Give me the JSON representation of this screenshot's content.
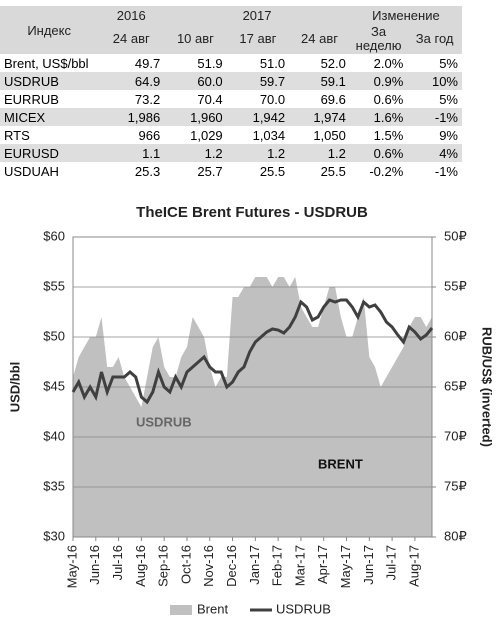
{
  "table": {
    "header_top": [
      "Индекс",
      "2016",
      "2017",
      "Изменение"
    ],
    "header_sub": [
      "24 авг",
      "10 авг",
      "17 авг",
      "24 авг",
      "За неделю",
      "За год"
    ],
    "rows": [
      [
        "Brent, US$/bbl",
        "49.7",
        "51.9",
        "51.0",
        "52.0",
        "2.0%",
        "5%"
      ],
      [
        "USDRUB",
        "64.9",
        "60.0",
        "59.7",
        "59.1",
        "0.9%",
        "10%"
      ],
      [
        "EURRUB",
        "73.2",
        "70.4",
        "70.0",
        "69.6",
        "0.6%",
        "5%"
      ],
      [
        "MICEX",
        "1,986",
        "1,960",
        "1,942",
        "1,974",
        "1.6%",
        "-1%"
      ],
      [
        "RTS",
        "966",
        "1,029",
        "1,034",
        "1,050",
        "1.5%",
        "9%"
      ],
      [
        "EURUSD",
        "1.1",
        "1.2",
        "1.2",
        "1.2",
        "0.6%",
        "4%"
      ],
      [
        "USDUAH",
        "25.3",
        "25.7",
        "25.5",
        "25.5",
        "-0.2%",
        "-1%"
      ]
    ]
  },
  "chart_data": {
    "type": "area-line",
    "title": "TheICE Brent Futures - USDRUB",
    "y_label": "USD/bbl",
    "y2_label": "RUB/US$ (inverted)",
    "annotations": [
      "USDRUB",
      "BRENT"
    ],
    "legend": "bottom",
    "grid": true,
    "categories": [
      "May-16",
      null,
      null,
      null,
      "Jun-16",
      null,
      null,
      null,
      "Jul-16",
      null,
      null,
      null,
      "Aug-16",
      null,
      null,
      null,
      "Sep-16",
      null,
      null,
      null,
      "Oct-16",
      null,
      null,
      null,
      "Nov-16",
      null,
      null,
      null,
      "Dec-16",
      null,
      null,
      null,
      "Jan-17",
      null,
      null,
      null,
      "Feb-17",
      null,
      null,
      null,
      "Mar-17",
      null,
      null,
      null,
      "Apr-17",
      null,
      null,
      null,
      "May-17",
      null,
      null,
      null,
      "Jun-17",
      null,
      null,
      null,
      "Jul-17",
      null,
      null,
      null,
      "Aug-17",
      null,
      null,
      null
    ],
    "ylim": [
      30,
      60
    ],
    "yticks": [
      {
        "value": 30,
        "label": "$30"
      },
      {
        "value": 35,
        "label": "$35"
      },
      {
        "value": 40,
        "label": "$40"
      },
      {
        "value": 45,
        "label": "$45"
      },
      {
        "value": 50,
        "label": "$50"
      },
      {
        "value": 55,
        "label": "$55"
      },
      {
        "value": 60,
        "label": "$60"
      }
    ],
    "y2lim": [
      80,
      50
    ],
    "y2ticks": [
      {
        "value": 50,
        "label": "50₽"
      },
      {
        "value": 55,
        "label": "55₽"
      },
      {
        "value": 60,
        "label": "60₽"
      },
      {
        "value": 65,
        "label": "65₽"
      },
      {
        "value": 70,
        "label": "70₽"
      },
      {
        "value": 75,
        "label": "75₽"
      },
      {
        "value": 80,
        "label": "80₽"
      }
    ],
    "series": [
      {
        "name": "Brent",
        "color": "#c0c0c0",
        "values": [
          46,
          48,
          49,
          50,
          50,
          52,
          47,
          47,
          48,
          46,
          45,
          44,
          43,
          46,
          49,
          50,
          47,
          46,
          46,
          48,
          49,
          52,
          51,
          50,
          47,
          45,
          46,
          46,
          54,
          54,
          55,
          55,
          56,
          56,
          56,
          55,
          56,
          56,
          55,
          56,
          53,
          52,
          51,
          51,
          53,
          55,
          55,
          52,
          50,
          50,
          52,
          54,
          48,
          47,
          45,
          46,
          47,
          48,
          49,
          51,
          52,
          52,
          51,
          52
        ]
      },
      {
        "name": "USDRUB",
        "color": "#404040",
        "axis": "y2",
        "values": [
          65.5,
          64.5,
          66,
          65,
          66,
          63.5,
          65.5,
          64,
          64,
          64,
          63.5,
          64,
          66,
          66.5,
          65.5,
          63.5,
          65,
          65.5,
          64,
          65,
          63.5,
          63,
          62.5,
          62,
          63,
          63.5,
          63.5,
          65,
          64.5,
          63.5,
          63,
          61.5,
          60.5,
          60,
          59.5,
          59.2,
          59.3,
          59.6,
          59,
          58,
          56.5,
          57,
          58.3,
          58,
          57,
          56.3,
          56.5,
          56.3,
          56.3,
          57,
          58,
          56.5,
          57,
          56.8,
          57.5,
          58.5,
          59,
          59.8,
          60.5,
          59,
          59.5,
          60.2,
          59.8,
          59.1
        ]
      }
    ]
  }
}
